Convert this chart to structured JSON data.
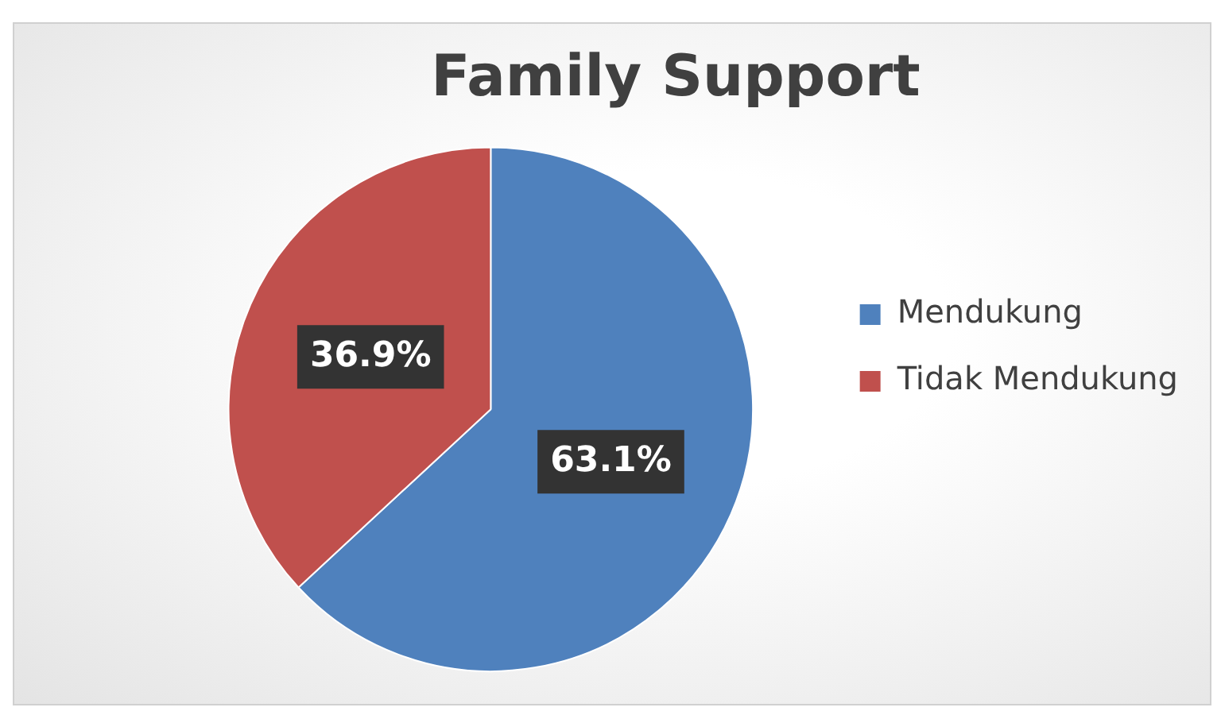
{
  "chart_data": {
    "type": "pie",
    "title": "Family Support",
    "categories": [
      "Mendukung",
      "Tidak Mendukung"
    ],
    "values": [
      63.1,
      36.9
    ],
    "colors": [
      "#4f81bd",
      "#c0504d"
    ],
    "value_labels": [
      "63.1%",
      "36.9%"
    ],
    "legend": "right"
  }
}
